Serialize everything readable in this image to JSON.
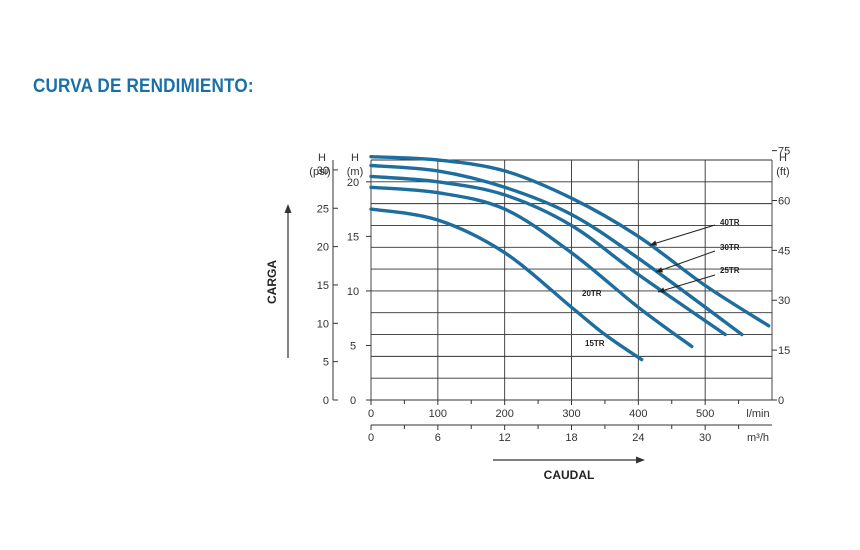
{
  "title": "CURVA DE RENDIMIENTO:",
  "chart_data": {
    "type": "line",
    "y_label": "CARGA",
    "x_label": "CAUDAL",
    "axes": {
      "psi": {
        "head": "H",
        "unit": "(psi)",
        "ticks": [
          0,
          5,
          10,
          15,
          20,
          25,
          30
        ]
      },
      "m": {
        "head": "H",
        "unit": "(m)",
        "ticks": [
          0,
          5,
          10,
          15,
          20
        ],
        "ylim": [
          0,
          22
        ]
      },
      "ft": {
        "head": "H",
        "unit": "(ft)",
        "ticks": [
          0,
          15,
          30,
          45,
          60,
          75
        ]
      },
      "lmin": {
        "unit": "l/min",
        "ticks": [
          0,
          100,
          200,
          300,
          400,
          500
        ],
        "xlim": [
          0,
          600
        ]
      },
      "m3h": {
        "unit": "m³/h",
        "ticks": [
          0,
          6,
          12,
          18,
          24,
          30
        ]
      }
    },
    "grid": true,
    "x_unit": "l/min",
    "y_unit": "m",
    "series": [
      {
        "name": "15TR",
        "x": [
          0,
          100,
          200,
          300,
          350,
          405
        ],
        "y": [
          17.5,
          16.5,
          13.5,
          8.5,
          6.0,
          3.7
        ]
      },
      {
        "name": "20TR",
        "x": [
          0,
          100,
          200,
          300,
          400,
          480
        ],
        "y": [
          19.5,
          19.0,
          17.5,
          13.5,
          8.5,
          4.9
        ]
      },
      {
        "name": "25TR",
        "x": [
          0,
          100,
          200,
          300,
          400,
          530
        ],
        "y": [
          20.5,
          20.0,
          18.8,
          16.0,
          11.5,
          6.0
        ]
      },
      {
        "name": "30TR",
        "x": [
          0,
          100,
          200,
          300,
          400,
          555
        ],
        "y": [
          21.5,
          21.0,
          19.5,
          17.0,
          13.0,
          6.0
        ]
      },
      {
        "name": "40TR",
        "x": [
          0,
          100,
          200,
          300,
          400,
          500,
          595
        ],
        "y": [
          22.3,
          22.0,
          21.0,
          18.5,
          15.0,
          10.5,
          6.8
        ]
      }
    ],
    "line_color": "#1d6e9e"
  }
}
